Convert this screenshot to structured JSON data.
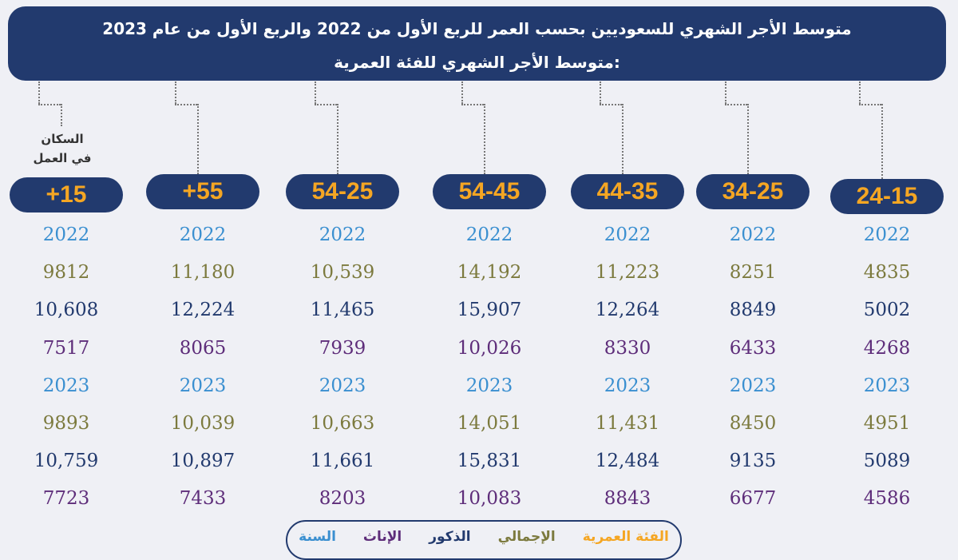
{
  "chart_data": {
    "type": "table",
    "title": "متوسط الأجر الشهري للسعوديين بحسب العمر للربع الأول من 2022 والربع الأول من عام 2023",
    "subtitle": "متوسط الأجر الشهري للفئة العمرية:",
    "side_label": [
      "السكان",
      "في العمل"
    ],
    "legend": {
      "age_group": "الفئة العمرية",
      "total": "الإجمالي",
      "males": "الذكور",
      "females": "الإناث",
      "year": "السنة"
    },
    "colors": {
      "age_group": "#f5a623",
      "total": "#7c7a3e",
      "males": "#223a6e",
      "females": "#5e2d7a",
      "year": "#3a8fd0"
    },
    "groups": [
      {
        "label": "+15",
        "y1": "2022",
        "t1": "9812",
        "m1": "10,608",
        "f1": "7517",
        "y2": "2023",
        "t2": "9893",
        "m2": "10,759",
        "f2": "7723"
      },
      {
        "label": "+55",
        "y1": "2022",
        "t1": "11,180",
        "m1": "12,224",
        "f1": "8065",
        "y2": "2023",
        "t2": "10,039",
        "m2": "10,897",
        "f2": "7433"
      },
      {
        "label": "54-25",
        "y1": "2022",
        "t1": "10,539",
        "m1": "11,465",
        "f1": "7939",
        "y2": "2023",
        "t2": "10,663",
        "m2": "11,661",
        "f2": "8203"
      },
      {
        "label": "54-45",
        "y1": "2022",
        "t1": "14,192",
        "m1": "15,907",
        "f1": "10,026",
        "y2": "2023",
        "t2": "14,051",
        "m2": "15,831",
        "f2": "10,083"
      },
      {
        "label": "44-35",
        "y1": "2022",
        "t1": "11,223",
        "m1": "12,264",
        "f1": "8330",
        "y2": "2023",
        "t2": "11,431",
        "m2": "12,484",
        "f2": "8843"
      },
      {
        "label": "34-25",
        "y1": "2022",
        "t1": "8251",
        "m1": "8849",
        "f1": "6433",
        "y2": "2023",
        "t2": "8450",
        "m2": "9135",
        "f2": "6677"
      },
      {
        "label": "24-15",
        "y1": "2022",
        "t1": "4835",
        "m1": "5002",
        "f1": "4268",
        "y2": "2023",
        "t2": "4951",
        "m2": "5089",
        "f2": "4586"
      }
    ]
  }
}
